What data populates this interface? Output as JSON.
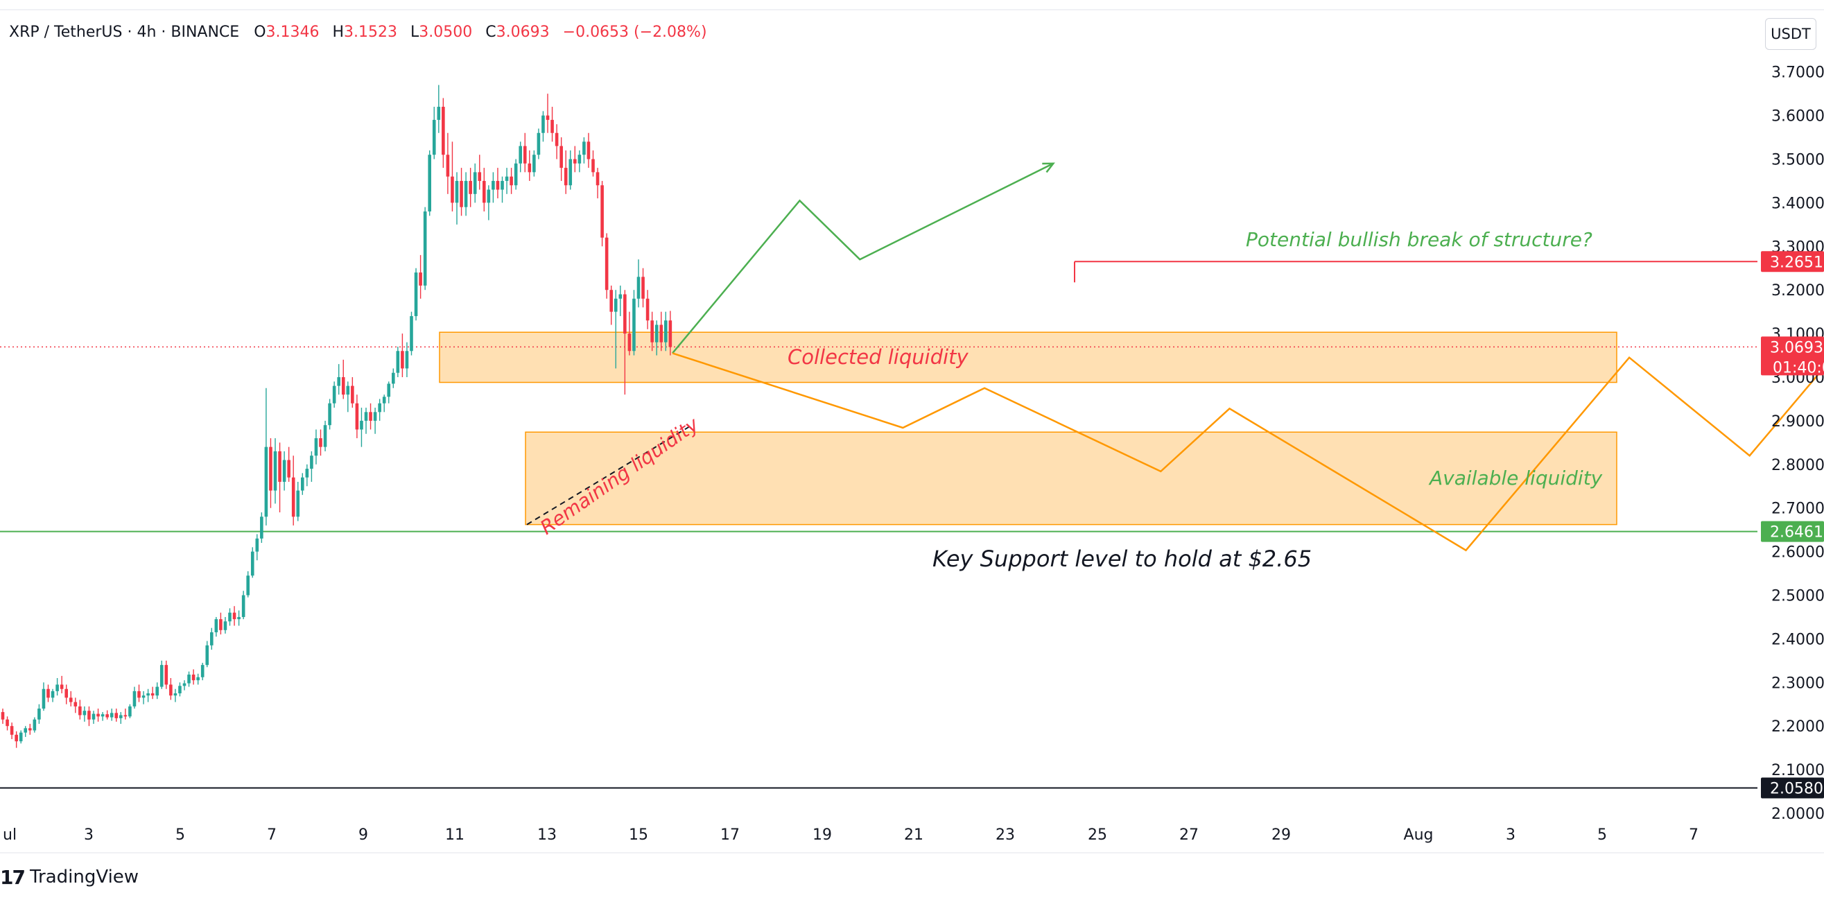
{
  "header": {
    "symbol": "XRP / TetherUS · 4h · BINANCE",
    "open_label": "O",
    "open": "3.1346",
    "high_label": "H",
    "high": "3.1523",
    "low_label": "L",
    "low": "3.0500",
    "close_label": "C",
    "close": "3.0693",
    "change": "−0.0653 (−2.08%)"
  },
  "currency_button": "USDT",
  "brand": {
    "logo": "17",
    "name": "TradingView"
  },
  "colors": {
    "up": "#26a69a",
    "down": "#f23645",
    "zone_fill": "#ffe0b3",
    "zone_stroke": "#ff9800",
    "bull_path": "#4caf50",
    "bear_path": "#ff9800",
    "support": "#4caf50",
    "resistance": "#f23645"
  },
  "chart_data": {
    "type": "candlestick",
    "timeframe": "4h",
    "y_axis": {
      "ticks": [
        "3.7000",
        "3.6000",
        "3.5000",
        "3.4000",
        "3.3000",
        "3.2000",
        "3.1000",
        "3.0000",
        "2.9000",
        "2.8000",
        "2.7000",
        "2.6000",
        "2.5000",
        "2.4000",
        "2.3000",
        "2.2000",
        "2.1000",
        "2.0000"
      ],
      "range": [
        1.99,
        3.73
      ]
    },
    "x_axis": {
      "ticks": [
        "ul",
        "3",
        "5",
        "7",
        "9",
        "11",
        "13",
        "15",
        "17",
        "19",
        "21",
        "23",
        "25",
        "27",
        "29",
        "Aug",
        "3",
        "5",
        "7"
      ]
    },
    "price_labels": [
      {
        "value": "3.2651",
        "role": "resistance"
      },
      {
        "value": "3.0693",
        "countdown": "01:40:0",
        "role": "current"
      },
      {
        "value": "2.6461",
        "role": "support"
      },
      {
        "value": "2.0580",
        "role": "low"
      }
    ],
    "candles": [
      [
        2.232,
        2.24,
        2.205,
        2.215
      ],
      [
        2.215,
        2.222,
        2.19,
        2.2
      ],
      [
        2.2,
        2.208,
        2.17,
        2.18
      ],
      [
        2.18,
        2.188,
        2.15,
        2.165
      ],
      [
        2.165,
        2.19,
        2.16,
        2.185
      ],
      [
        2.185,
        2.2,
        2.175,
        2.195
      ],
      [
        2.195,
        2.205,
        2.18,
        2.19
      ],
      [
        2.19,
        2.22,
        2.185,
        2.215
      ],
      [
        2.215,
        2.25,
        2.205,
        2.24
      ],
      [
        2.24,
        2.3,
        2.235,
        2.285
      ],
      [
        2.285,
        2.295,
        2.255,
        2.265
      ],
      [
        2.265,
        2.285,
        2.255,
        2.28
      ],
      [
        2.28,
        2.31,
        2.27,
        2.295
      ],
      [
        2.295,
        2.315,
        2.275,
        2.285
      ],
      [
        2.285,
        2.295,
        2.25,
        2.265
      ],
      [
        2.265,
        2.28,
        2.245,
        2.255
      ],
      [
        2.255,
        2.265,
        2.23,
        2.245
      ],
      [
        2.245,
        2.26,
        2.215,
        2.225
      ],
      [
        2.225,
        2.245,
        2.21,
        2.235
      ],
      [
        2.235,
        2.245,
        2.2,
        2.215
      ],
      [
        2.215,
        2.235,
        2.205,
        2.228
      ],
      [
        2.228,
        2.24,
        2.21,
        2.222
      ],
      [
        2.222,
        2.232,
        2.212,
        2.227
      ],
      [
        2.227,
        2.236,
        2.215,
        2.22
      ],
      [
        2.22,
        2.24,
        2.212,
        2.23
      ],
      [
        2.23,
        2.24,
        2.21,
        2.218
      ],
      [
        2.218,
        2.232,
        2.205,
        2.225
      ],
      [
        2.225,
        2.24,
        2.215,
        2.222
      ],
      [
        2.222,
        2.25,
        2.218,
        2.245
      ],
      [
        2.245,
        2.29,
        2.24,
        2.28
      ],
      [
        2.28,
        2.295,
        2.255,
        2.265
      ],
      [
        2.265,
        2.28,
        2.25,
        2.27
      ],
      [
        2.27,
        2.285,
        2.255,
        2.275
      ],
      [
        2.275,
        2.29,
        2.262,
        2.27
      ],
      [
        2.27,
        2.3,
        2.262,
        2.29
      ],
      [
        2.29,
        2.35,
        2.285,
        2.34
      ],
      [
        2.34,
        2.35,
        2.285,
        2.295
      ],
      [
        2.295,
        2.31,
        2.26,
        2.27
      ],
      [
        2.27,
        2.285,
        2.255,
        2.275
      ],
      [
        2.275,
        2.3,
        2.268,
        2.292
      ],
      [
        2.292,
        2.305,
        2.282,
        2.298
      ],
      [
        2.298,
        2.325,
        2.29,
        2.318
      ],
      [
        2.318,
        2.33,
        2.295,
        2.305
      ],
      [
        2.305,
        2.32,
        2.295,
        2.312
      ],
      [
        2.312,
        2.345,
        2.305,
        2.34
      ],
      [
        2.34,
        2.395,
        2.335,
        2.385
      ],
      [
        2.385,
        2.425,
        2.375,
        2.415
      ],
      [
        2.415,
        2.45,
        2.405,
        2.445
      ],
      [
        2.445,
        2.46,
        2.41,
        2.42
      ],
      [
        2.42,
        2.45,
        2.412,
        2.44
      ],
      [
        2.44,
        2.47,
        2.43,
        2.46
      ],
      [
        2.46,
        2.475,
        2.43,
        2.445
      ],
      [
        2.445,
        2.465,
        2.43,
        2.45
      ],
      [
        2.45,
        2.51,
        2.445,
        2.5
      ],
      [
        2.5,
        2.555,
        2.495,
        2.545
      ],
      [
        2.545,
        2.61,
        2.54,
        2.6
      ],
      [
        2.6,
        2.64,
        2.58,
        2.63
      ],
      [
        2.63,
        2.69,
        2.62,
        2.68
      ],
      [
        2.68,
        2.975,
        2.66,
        2.84
      ],
      [
        2.84,
        2.86,
        2.7,
        2.74
      ],
      [
        2.74,
        2.86,
        2.71,
        2.83
      ],
      [
        2.83,
        2.85,
        2.69,
        2.76
      ],
      [
        2.76,
        2.83,
        2.74,
        2.81
      ],
      [
        2.81,
        2.84,
        2.76,
        2.77
      ],
      [
        2.77,
        2.82,
        2.66,
        2.68
      ],
      [
        2.68,
        2.76,
        2.67,
        2.74
      ],
      [
        2.74,
        2.78,
        2.73,
        2.77
      ],
      [
        2.77,
        2.8,
        2.75,
        2.79
      ],
      [
        2.79,
        2.83,
        2.76,
        2.82
      ],
      [
        2.82,
        2.88,
        2.8,
        2.86
      ],
      [
        2.86,
        2.88,
        2.82,
        2.84
      ],
      [
        2.84,
        2.9,
        2.83,
        2.89
      ],
      [
        2.89,
        2.95,
        2.88,
        2.94
      ],
      [
        2.94,
        2.99,
        2.93,
        2.98
      ],
      [
        2.98,
        3.03,
        2.96,
        3.0
      ],
      [
        3.0,
        3.04,
        2.95,
        2.96
      ],
      [
        2.96,
        2.99,
        2.92,
        2.98
      ],
      [
        2.98,
        3.0,
        2.93,
        2.94
      ],
      [
        2.94,
        2.96,
        2.86,
        2.88
      ],
      [
        2.88,
        2.93,
        2.84,
        2.9
      ],
      [
        2.9,
        2.93,
        2.87,
        2.92
      ],
      [
        2.92,
        2.94,
        2.88,
        2.9
      ],
      [
        2.9,
        2.93,
        2.87,
        2.92
      ],
      [
        2.92,
        2.95,
        2.9,
        2.94
      ],
      [
        2.94,
        2.96,
        2.92,
        2.955
      ],
      [
        2.955,
        2.99,
        2.94,
        2.985
      ],
      [
        2.985,
        3.02,
        2.975,
        3.01
      ],
      [
        3.01,
        3.07,
        3.0,
        3.06
      ],
      [
        3.06,
        3.1,
        3.0,
        3.02
      ],
      [
        3.02,
        3.08,
        3.0,
        3.06
      ],
      [
        3.06,
        3.15,
        3.05,
        3.14
      ],
      [
        3.14,
        3.25,
        3.13,
        3.24
      ],
      [
        3.24,
        3.28,
        3.18,
        3.21
      ],
      [
        3.21,
        3.39,
        3.2,
        3.38
      ],
      [
        3.38,
        3.52,
        3.37,
        3.51
      ],
      [
        3.51,
        3.62,
        3.5,
        3.59
      ],
      [
        3.59,
        3.67,
        3.56,
        3.62
      ],
      [
        3.62,
        3.64,
        3.48,
        3.51
      ],
      [
        3.51,
        3.56,
        3.42,
        3.46
      ],
      [
        3.46,
        3.54,
        3.38,
        3.4
      ],
      [
        3.4,
        3.47,
        3.35,
        3.45
      ],
      [
        3.45,
        3.48,
        3.37,
        3.39
      ],
      [
        3.39,
        3.47,
        3.37,
        3.45
      ],
      [
        3.45,
        3.48,
        3.39,
        3.42
      ],
      [
        3.42,
        3.49,
        3.4,
        3.47
      ],
      [
        3.47,
        3.51,
        3.43,
        3.45
      ],
      [
        3.45,
        3.48,
        3.38,
        3.4
      ],
      [
        3.4,
        3.44,
        3.36,
        3.43
      ],
      [
        3.43,
        3.47,
        3.4,
        3.45
      ],
      [
        3.45,
        3.48,
        3.41,
        3.43
      ],
      [
        3.43,
        3.46,
        3.4,
        3.45
      ],
      [
        3.45,
        3.48,
        3.42,
        3.46
      ],
      [
        3.46,
        3.48,
        3.42,
        3.44
      ],
      [
        3.44,
        3.5,
        3.43,
        3.49
      ],
      [
        3.49,
        3.54,
        3.47,
        3.53
      ],
      [
        3.53,
        3.56,
        3.47,
        3.49
      ],
      [
        3.49,
        3.52,
        3.45,
        3.47
      ],
      [
        3.47,
        3.52,
        3.46,
        3.51
      ],
      [
        3.51,
        3.57,
        3.5,
        3.56
      ],
      [
        3.56,
        3.61,
        3.54,
        3.6
      ],
      [
        3.6,
        3.65,
        3.56,
        3.59
      ],
      [
        3.59,
        3.62,
        3.54,
        3.56
      ],
      [
        3.56,
        3.58,
        3.5,
        3.53
      ],
      [
        3.53,
        3.55,
        3.45,
        3.48
      ],
      [
        3.48,
        3.52,
        3.42,
        3.44
      ],
      [
        3.44,
        3.52,
        3.43,
        3.5
      ],
      [
        3.5,
        3.53,
        3.47,
        3.49
      ],
      [
        3.49,
        3.52,
        3.47,
        3.51
      ],
      [
        3.51,
        3.55,
        3.49,
        3.54
      ],
      [
        3.54,
        3.56,
        3.48,
        3.5
      ],
      [
        3.5,
        3.52,
        3.46,
        3.47
      ],
      [
        3.47,
        3.48,
        3.41,
        3.44
      ],
      [
        3.44,
        3.45,
        3.3,
        3.32
      ],
      [
        3.32,
        3.33,
        3.18,
        3.2
      ],
      [
        3.2,
        3.21,
        3.12,
        3.15
      ],
      [
        3.15,
        3.2,
        3.02,
        3.18
      ],
      [
        3.18,
        3.21,
        3.14,
        3.19
      ],
      [
        3.19,
        3.2,
        2.96,
        3.1
      ],
      [
        3.1,
        3.15,
        3.05,
        3.06
      ],
      [
        3.06,
        3.2,
        3.05,
        3.18
      ],
      [
        3.18,
        3.27,
        3.16,
        3.23
      ],
      [
        3.23,
        3.25,
        3.16,
        3.18
      ],
      [
        3.18,
        3.2,
        3.11,
        3.13
      ],
      [
        3.13,
        3.15,
        3.06,
        3.08
      ],
      [
        3.08,
        3.13,
        3.05,
        3.12
      ],
      [
        3.12,
        3.15,
        3.06,
        3.08
      ],
      [
        3.08,
        3.15,
        3.06,
        3.13
      ],
      [
        3.13,
        3.152,
        3.05,
        3.069
      ]
    ],
    "zones": [
      {
        "label": "Collected liquidity",
        "top": 3.103,
        "bottom": 2.988
      },
      {
        "label": "Available liquidity",
        "top": 2.874,
        "bottom": 2.662
      }
    ],
    "levels": [
      {
        "price": 3.2651,
        "color": "red",
        "from": "Jul 24"
      },
      {
        "price": 3.0693,
        "color": "red",
        "style": "dotted"
      },
      {
        "price": 2.6461,
        "color": "green"
      },
      {
        "price": 2.058,
        "color": "black"
      }
    ],
    "annotations": {
      "bullish_text": "Potential bullish break of structure?",
      "collected_text": "Collected liquidity",
      "remaining_text": "Remaining liquidity",
      "available_text": "Available liquidity",
      "support_text": "Key Support level to hold at $2.65"
    },
    "bull_path": [
      [
        3.064,
        3.055
      ],
      [
        3.36,
        3.405
      ],
      [
        3.5,
        3.27
      ],
      [
        3.95,
        3.49
      ]
    ],
    "bear_path": [
      [
        3.064,
        3.055
      ],
      [
        3.6,
        2.884
      ],
      [
        3.79,
        2.975
      ],
      [
        4.2,
        2.784
      ],
      [
        4.36,
        2.928
      ],
      [
        4.91,
        2.603
      ],
      [
        5.29,
        3.045
      ],
      [
        5.57,
        2.82
      ],
      [
        5.9,
        3.205
      ]
    ]
  }
}
